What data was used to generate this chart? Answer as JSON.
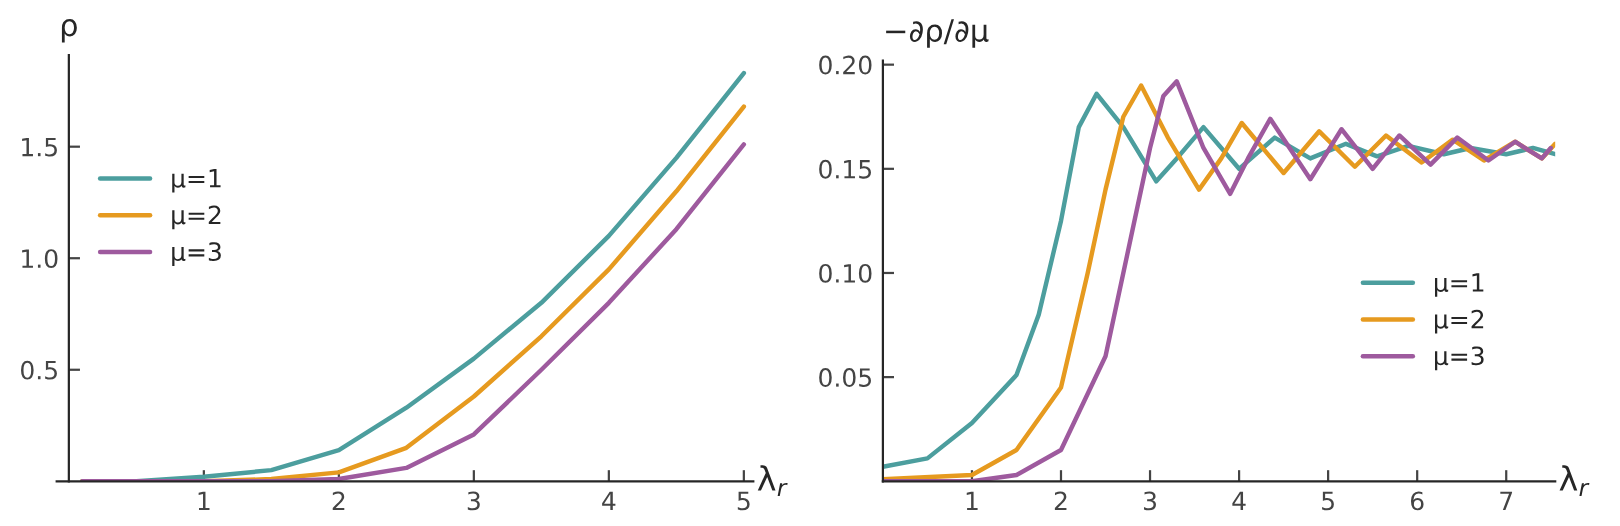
{
  "chart_data": [
    {
      "type": "line",
      "xlabel": "λ$_{r}$",
      "ylabel": "ρ",
      "xlim": [
        -0.09,
        5.07
      ],
      "ylim": [
        0,
        1.91
      ],
      "xticks": [
        1,
        2,
        3,
        4,
        5
      ],
      "yticks": [
        {
          "value": 0.5,
          "label": "0.5"
        },
        {
          "value": 1,
          "label": "1.0"
        },
        {
          "value": 1.5,
          "label": "1.5"
        }
      ],
      "grid": false,
      "legend": "center left",
      "line_style": "solid",
      "series": [
        {
          "name": "μ=1",
          "color": "#4c9e9e",
          "x": [
            0.1,
            0.5,
            1,
            1.5,
            2,
            2.5,
            3,
            3.5,
            4,
            4.5,
            5
          ],
          "values": [
            0,
            0,
            0.02,
            0.05,
            0.14,
            0.33,
            0.55,
            0.8,
            1.1,
            1.45,
            1.83
          ]
        },
        {
          "name": "μ=2",
          "color": "#e69a1f",
          "x": [
            0.1,
            0.5,
            1,
            1.5,
            2,
            2.5,
            3,
            3.5,
            4,
            4.5,
            5
          ],
          "values": [
            0,
            0,
            0,
            0.01,
            0.04,
            0.15,
            0.38,
            0.65,
            0.95,
            1.3,
            1.68
          ]
        },
        {
          "name": "μ=3",
          "color": "#9e5a9e",
          "x": [
            0.1,
            0.5,
            1,
            1.5,
            2,
            2.5,
            3,
            3.5,
            4,
            4.5,
            5
          ],
          "values": [
            0,
            0,
            0,
            0,
            0.01,
            0.06,
            0.21,
            0.5,
            0.8,
            1.13,
            1.51
          ]
        }
      ]
    },
    {
      "type": "line",
      "xlabel": "λ$_{r}$",
      "ylabel": "−∂ρ/∂μ",
      "xlim": [
        0,
        7.55
      ],
      "ylim": [
        0,
        0.202
      ],
      "xticks": [
        1,
        2,
        3,
        4,
        5,
        6,
        7
      ],
      "yticks": [
        {
          "value": 0.05,
          "label": "0.05"
        },
        {
          "value": 0.1,
          "label": "0.10"
        },
        {
          "value": 0.15,
          "label": "0.15"
        },
        {
          "value": 0.2,
          "label": "0.20"
        }
      ],
      "grid": false,
      "legend": "center right",
      "line_style": "solid",
      "series": [
        {
          "name": "μ=1",
          "color": "#4c9e9e",
          "x": [
            0,
            0.5,
            1,
            1.5,
            1.75,
            2,
            2.2,
            2.4,
            2.7,
            3.07,
            3.3,
            3.6,
            4.0,
            4.4,
            4.8,
            5.2,
            5.55,
            5.9,
            6.3,
            6.6,
            7.0,
            7.3,
            7.55
          ],
          "values": [
            0.007,
            0.011,
            0.028,
            0.051,
            0.08,
            0.125,
            0.17,
            0.186,
            0.17,
            0.144,
            0.155,
            0.17,
            0.15,
            0.165,
            0.155,
            0.162,
            0.156,
            0.161,
            0.157,
            0.16,
            0.157,
            0.16,
            0.157
          ]
        },
        {
          "name": "μ=2",
          "color": "#e69a1f",
          "x": [
            0,
            1,
            1.5,
            2,
            2.3,
            2.5,
            2.7,
            2.9,
            3.2,
            3.55,
            3.8,
            4.03,
            4.5,
            4.9,
            5.3,
            5.65,
            6.05,
            6.4,
            6.75,
            7.1,
            7.4,
            7.55
          ],
          "values": [
            0.001,
            0.003,
            0.015,
            0.045,
            0.1,
            0.14,
            0.175,
            0.19,
            0.165,
            0.14,
            0.155,
            0.172,
            0.148,
            0.168,
            0.151,
            0.166,
            0.153,
            0.164,
            0.154,
            0.163,
            0.155,
            0.162
          ]
        },
        {
          "name": "μ=3",
          "color": "#9e5a9e",
          "x": [
            0,
            1,
            1.5,
            2,
            2.5,
            2.8,
            3.0,
            3.15,
            3.3,
            3.6,
            3.9,
            4.1,
            4.35,
            4.8,
            5.15,
            5.5,
            5.8,
            6.15,
            6.45,
            6.8,
            7.1,
            7.4,
            7.5
          ],
          "values": [
            0,
            0,
            0.003,
            0.015,
            0.06,
            0.12,
            0.16,
            0.185,
            0.192,
            0.16,
            0.138,
            0.155,
            0.174,
            0.145,
            0.169,
            0.15,
            0.166,
            0.152,
            0.165,
            0.154,
            0.163,
            0.155,
            0.16
          ]
        }
      ]
    }
  ]
}
